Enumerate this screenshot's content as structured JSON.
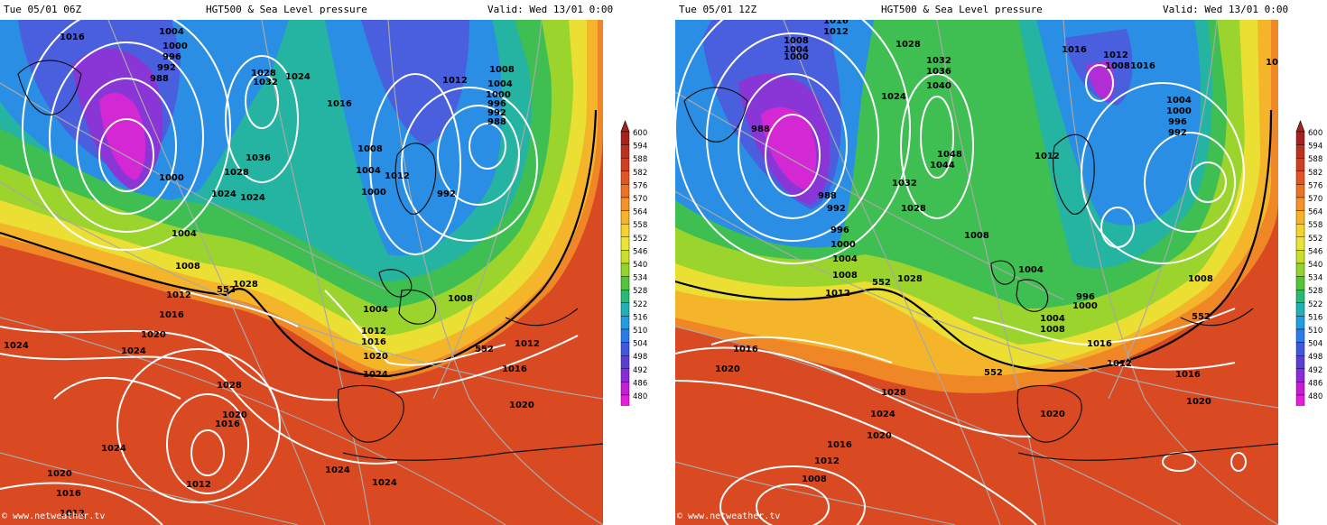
{
  "panels": [
    {
      "run": "Tue 05/01 06Z",
      "title": "HGT500 & Sea Level pressure",
      "valid": "Valid: Wed 13/01 0:00",
      "credit": "© www.netweather.tv",
      "isobar_labels": [
        "1016",
        "1004",
        "1000",
        "996",
        "992",
        "988",
        "1028",
        "1032",
        "1024",
        "1016",
        "1012",
        "1008",
        "1004",
        "1000",
        "996",
        "992",
        "988",
        "1000",
        "1036",
        "1028",
        "1024",
        "1024",
        "1008",
        "1004",
        "1012",
        "1000",
        "992",
        "1004",
        "1008",
        "1012",
        "1028",
        "1016",
        "1008",
        "1004",
        "1012",
        "1016",
        "1020",
        "1024",
        "1012",
        "1016",
        "1020",
        "1024",
        "1024",
        "1028",
        "1020",
        "1016",
        "1024",
        "1012",
        "1020",
        "1016",
        "1012",
        "1024",
        "1024",
        "1020"
      ],
      "contour_labels": [
        "552",
        "552"
      ]
    },
    {
      "run": "Tue 05/01 12Z",
      "title": "HGT500 & Sea Level pressure",
      "valid": "Valid: Wed 13/01 0:00",
      "credit": "© www.netweather.tv",
      "isobar_labels": [
        "1016",
        "1012",
        "1008",
        "1004",
        "1000",
        "1028",
        "1032",
        "1036",
        "1040",
        "1024",
        "988",
        "1016",
        "1012",
        "1008",
        "1016",
        "1004",
        "1000",
        "996",
        "992",
        "1012",
        "1048",
        "1044",
        "1032",
        "1028",
        "988",
        "992",
        "996",
        "1000",
        "1004",
        "1008",
        "1008",
        "1004",
        "996",
        "1000",
        "1004",
        "1008",
        "1012",
        "1028",
        "1008",
        "1016",
        "1020",
        "1016",
        "1012",
        "1016",
        "1028",
        "1020",
        "1024",
        "1020",
        "1016",
        "1012",
        "1008"
      ],
      "contour_labels": [
        "552",
        "552",
        "552"
      ]
    }
  ],
  "colorbar": {
    "levels": [
      "600",
      "594",
      "588",
      "582",
      "576",
      "570",
      "564",
      "558",
      "552",
      "546",
      "540",
      "534",
      "528",
      "522",
      "516",
      "510",
      "504",
      "498",
      "492",
      "486",
      "480"
    ],
    "colors": [
      "#a3241e",
      "#b83222",
      "#cc4123",
      "#df5525",
      "#ec7226",
      "#f39328",
      "#f6b42a",
      "#f5d22d",
      "#e9e535",
      "#c7e02e",
      "#94d42c",
      "#56c43b",
      "#2bb874",
      "#22b0b4",
      "#239ce2",
      "#2f7be6",
      "#3f58dd",
      "#5a3fd6",
      "#8a2cd6",
      "#c41ed0",
      "#e61ddf"
    ]
  }
}
